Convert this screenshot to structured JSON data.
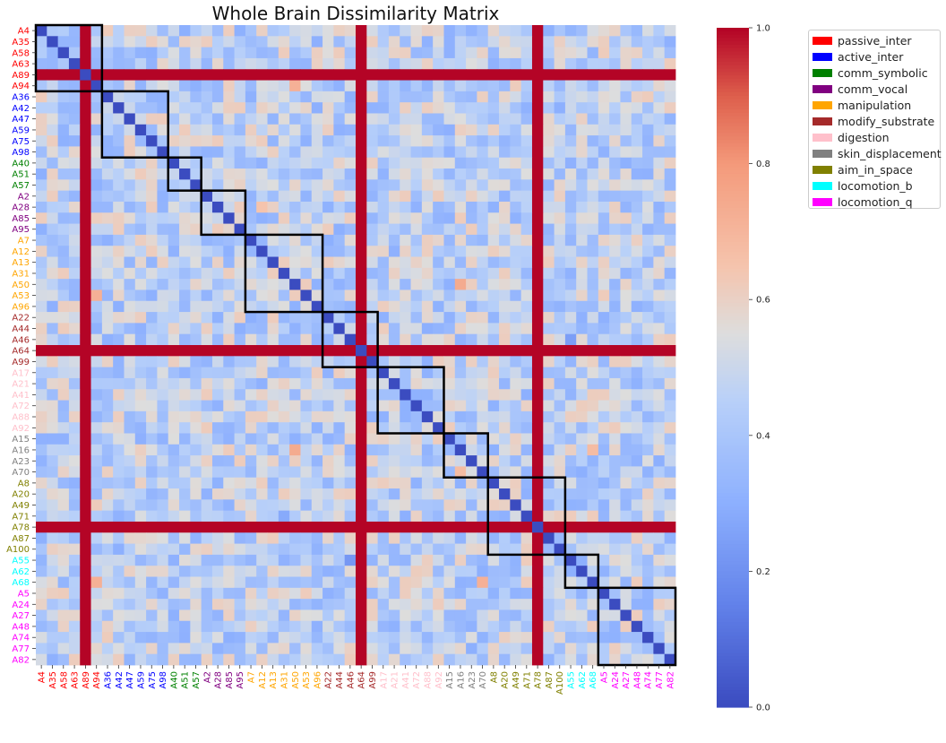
{
  "chart_data": {
    "type": "heatmap",
    "title": "Whole Brain Dissimilarity Matrix",
    "labels": [
      "A4",
      "A35",
      "A58",
      "A63",
      "A89",
      "A94",
      "A36",
      "A42",
      "A47",
      "A59",
      "A75",
      "A98",
      "A40",
      "A51",
      "A57",
      "A2",
      "A28",
      "A85",
      "A95",
      "A7",
      "A12",
      "A13",
      "A31",
      "A50",
      "A53",
      "A96",
      "A22",
      "A44",
      "A46",
      "A64",
      "A99",
      "A17",
      "A21",
      "A41",
      "A72",
      "A88",
      "A92",
      "A15",
      "A16",
      "A23",
      "A70",
      "A8",
      "A20",
      "A49",
      "A71",
      "A78",
      "A87",
      "A100",
      "A55",
      "A62",
      "A68",
      "A5",
      "A24",
      "A27",
      "A48",
      "A74",
      "A77",
      "A82"
    ],
    "label_category": [
      "passive_inter",
      "passive_inter",
      "passive_inter",
      "passive_inter",
      "passive_inter",
      "passive_inter",
      "active_inter",
      "active_inter",
      "active_inter",
      "active_inter",
      "active_inter",
      "active_inter",
      "comm_symbolic",
      "comm_symbolic",
      "comm_symbolic",
      "comm_vocal",
      "comm_vocal",
      "comm_vocal",
      "comm_vocal",
      "manipulation",
      "manipulation",
      "manipulation",
      "manipulation",
      "manipulation",
      "manipulation",
      "manipulation",
      "modify_substrate",
      "modify_substrate",
      "modify_substrate",
      "modify_substrate",
      "modify_substrate",
      "digestion",
      "digestion",
      "digestion",
      "digestion",
      "digestion",
      "digestion",
      "skin_displacement",
      "skin_displacement",
      "skin_displacement",
      "skin_displacement",
      "aim_in_space",
      "aim_in_space",
      "aim_in_space",
      "aim_in_space",
      "aim_in_space",
      "aim_in_space",
      "aim_in_space",
      "locomotion_b",
      "locomotion_b",
      "locomotion_b",
      "locomotion_q",
      "locomotion_q",
      "locomotion_q",
      "locomotion_q",
      "locomotion_q",
      "locomotion_q",
      "locomotion_q"
    ],
    "outlier_labels": [
      "A89",
      "A64",
      "A78"
    ],
    "outlier_value": 1.0,
    "diagonal_value": 0.0,
    "value_range": [
      0,
      1
    ],
    "colorbar_ticks": [
      0.0,
      0.2,
      0.4,
      0.6,
      0.8,
      1.0
    ],
    "colorbar_tick_labels": [
      "0.0",
      "0.2",
      "0.4",
      "0.6",
      "0.8",
      "1.0"
    ],
    "colormap": "coolwarm",
    "group_boxes": [
      [
        0,
        5
      ],
      [
        6,
        11
      ],
      [
        12,
        14
      ],
      [
        15,
        18
      ],
      [
        19,
        25
      ],
      [
        26,
        30
      ],
      [
        31,
        36
      ],
      [
        37,
        40
      ],
      [
        41,
        47
      ],
      [
        48,
        50
      ],
      [
        51,
        57
      ]
    ],
    "noted_cells": [
      {
        "row": "A94",
        "col": "A50",
        "value": 0.72
      },
      {
        "row": "A53",
        "col": "A94",
        "value": 0.72
      },
      {
        "row": "A16",
        "col": "A50",
        "value": 0.74
      },
      {
        "row": "A50",
        "col": "A16",
        "value": 0.74
      },
      {
        "row": "A70",
        "col": "A16",
        "value": 0.68
      },
      {
        "row": "A68",
        "col": "A94",
        "value": 0.72
      },
      {
        "row": "A68",
        "col": "A70",
        "value": 0.72
      },
      {
        "row": "A16",
        "col": "A68",
        "value": 0.68
      },
      {
        "row": "A28",
        "col": "A12",
        "value": 0.65
      },
      {
        "row": "A95",
        "col": "A44",
        "value": 0.3
      },
      {
        "row": "A31",
        "col": "A82",
        "value": 0.32
      },
      {
        "row": "A44",
        "col": "A88",
        "value": 0.3
      },
      {
        "row": "A55",
        "col": "A46",
        "value": 0.22
      },
      {
        "row": "A46",
        "col": "A55",
        "value": 0.24
      },
      {
        "row": "A71",
        "col": "A31",
        "value": 0.28
      },
      {
        "row": "A44",
        "col": "A95",
        "value": 0.3
      },
      {
        "row": "A74",
        "col": "A85",
        "value": 0.3
      },
      {
        "row": "A35",
        "col": "A88",
        "value": 0.31
      }
    ]
  },
  "legend": {
    "items": [
      {
        "label": "passive_inter",
        "color": "#ff0000"
      },
      {
        "label": "active_inter",
        "color": "#0000ff"
      },
      {
        "label": "comm_symbolic",
        "color": "#008000"
      },
      {
        "label": "comm_vocal",
        "color": "#800080"
      },
      {
        "label": "manipulation",
        "color": "#ffa500"
      },
      {
        "label": "modify_substrate",
        "color": "#a52a2a"
      },
      {
        "label": "digestion",
        "color": "#ffc0cb"
      },
      {
        "label": "skin_displacement",
        "color": "#808080"
      },
      {
        "label": "aim_in_space",
        "color": "#808000"
      },
      {
        "label": "locomotion_b",
        "color": "#00ffff"
      },
      {
        "label": "locomotion_q",
        "color": "#ff00ff"
      }
    ]
  }
}
